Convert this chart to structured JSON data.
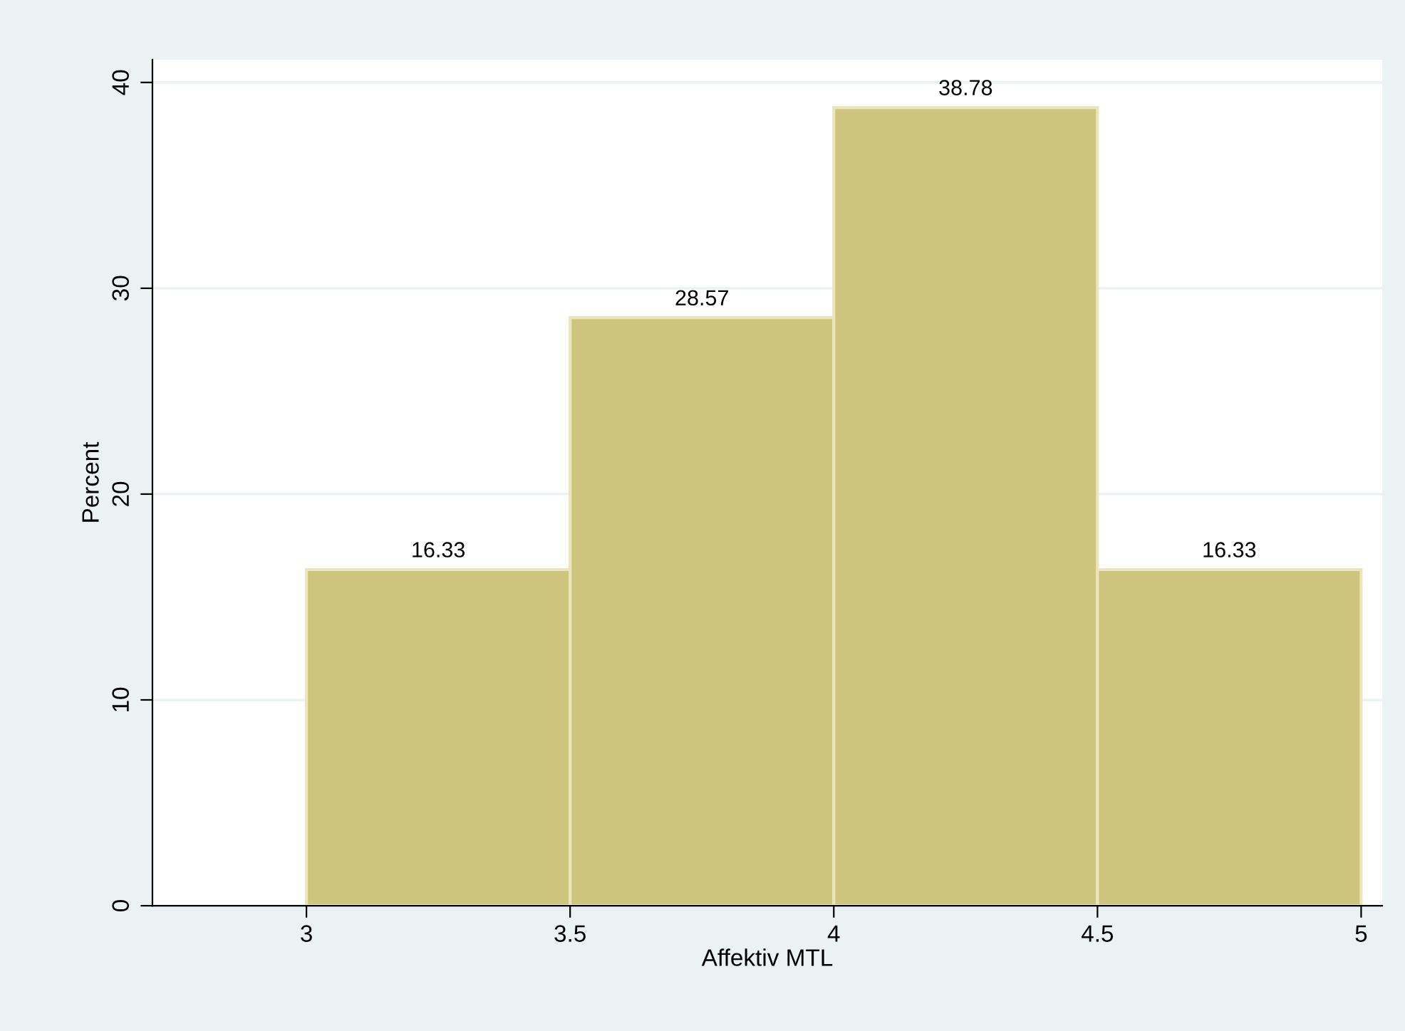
{
  "chart_data": {
    "type": "histogram",
    "xlabel": "Affektiv MTL",
    "ylabel": "Percent",
    "bins": [
      3,
      3.5,
      4,
      4.5,
      5
    ],
    "values": [
      16.33,
      28.57,
      38.78,
      16.33
    ],
    "color": "#cdc47e",
    "xlim": [
      2.708,
      5.04
    ],
    "xticks": [
      3,
      3.5,
      4,
      4.5,
      5
    ],
    "ylim": [
      0,
      41.1
    ],
    "yticks": [
      0,
      10,
      20,
      30,
      40
    ],
    "grid": "y",
    "data_labels": true
  }
}
